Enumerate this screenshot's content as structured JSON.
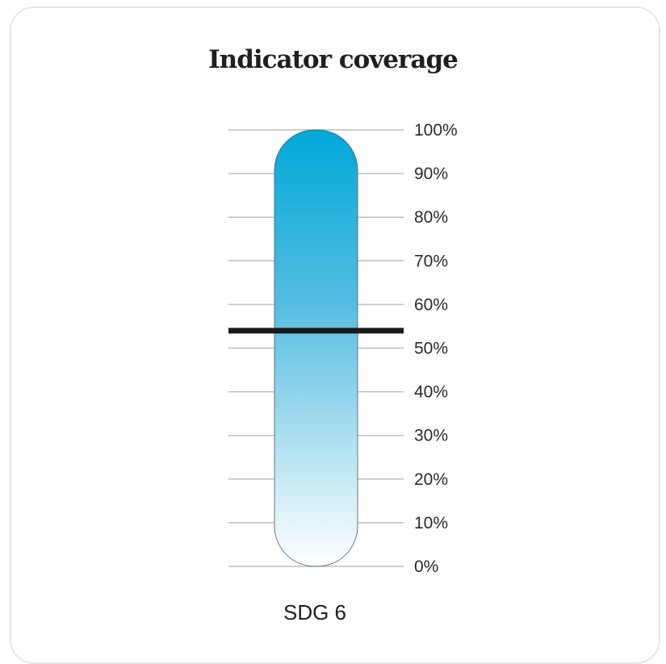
{
  "chart_data": {
    "type": "bar",
    "title": "Indicator coverage",
    "categories": [
      "SDG 6"
    ],
    "values": [
      100
    ],
    "reference_line": 54,
    "ylim": [
      0,
      100
    ],
    "yticks": [
      {
        "value": 0,
        "label": "0%"
      },
      {
        "value": 10,
        "label": "10%"
      },
      {
        "value": 20,
        "label": "20%"
      },
      {
        "value": 30,
        "label": "30%"
      },
      {
        "value": 40,
        "label": "40%"
      },
      {
        "value": 50,
        "label": "50%"
      },
      {
        "value": 60,
        "label": "60%"
      },
      {
        "value": 70,
        "label": "70%"
      },
      {
        "value": 80,
        "label": "80%"
      },
      {
        "value": 90,
        "label": "90%"
      },
      {
        "value": 100,
        "label": "100%"
      }
    ],
    "grid": true,
    "colors": {
      "bar_top": "#00a9d8",
      "bar_bottom": "#ffffff",
      "gridline": "#bdbdbd",
      "reference_line": "#1a1a1a",
      "bar_outline": "#555555"
    }
  }
}
